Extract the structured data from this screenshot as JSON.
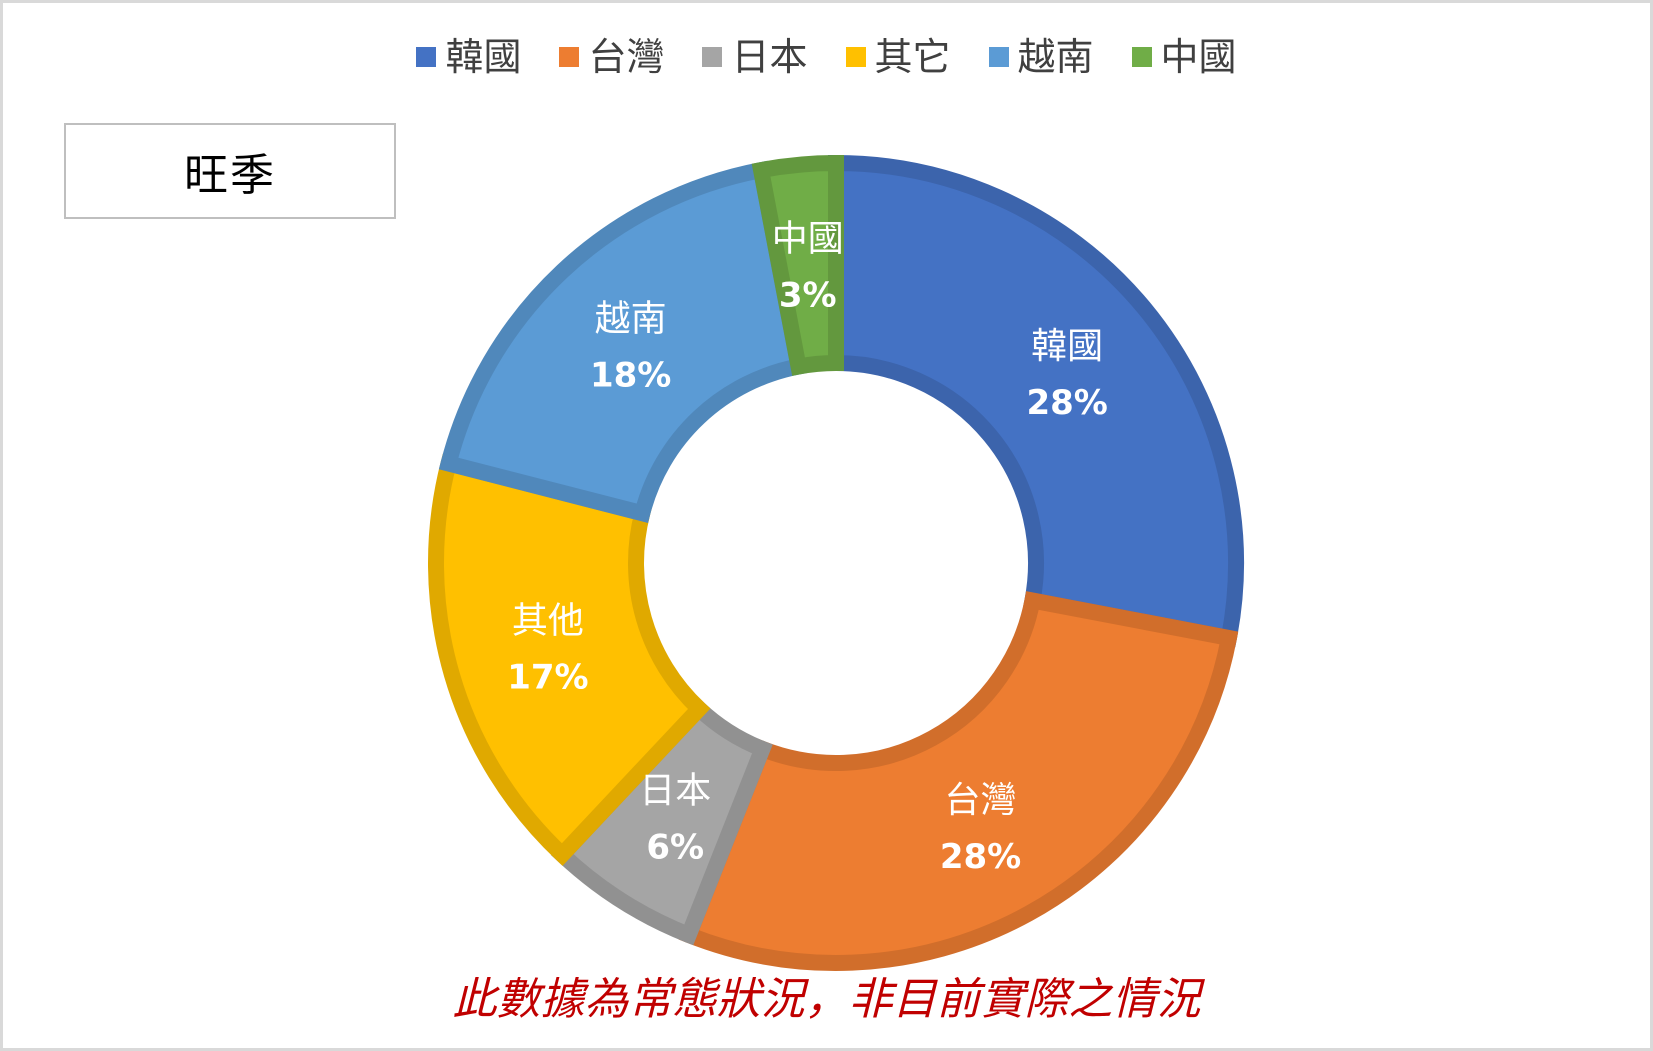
{
  "legend": [
    {
      "label": "韓國",
      "color": "#4472C4"
    },
    {
      "label": "台灣",
      "color": "#ED7D31"
    },
    {
      "label": "日本",
      "color": "#A5A5A5"
    },
    {
      "label": "其它",
      "color": "#FFC000"
    },
    {
      "label": "越南",
      "color": "#5B9BD5"
    },
    {
      "label": "中國",
      "color": "#70AD47"
    }
  ],
  "season_label": "旺季",
  "note": "此數據為常態狀況，非目前實際之情況",
  "chart_data": {
    "type": "pie",
    "variant": "donut",
    "slices": [
      {
        "label": "韓國",
        "value": 28,
        "display": "28%",
        "color": "#4472C4"
      },
      {
        "label": "台灣",
        "value": 28,
        "display": "28%",
        "color": "#ED7D31"
      },
      {
        "label": "日本",
        "value": 6,
        "display": "6%",
        "color": "#A5A5A5"
      },
      {
        "label": "其他",
        "value": 17,
        "display": "17%",
        "color": "#FFC000"
      },
      {
        "label": "越南",
        "value": 18,
        "display": "18%",
        "color": "#5B9BD5"
      },
      {
        "label": "中國",
        "value": 3,
        "display": "3%",
        "color": "#70AD47"
      }
    ],
    "legend_position": "top",
    "start_angle": "12 o'clock",
    "direction": "clockwise"
  }
}
